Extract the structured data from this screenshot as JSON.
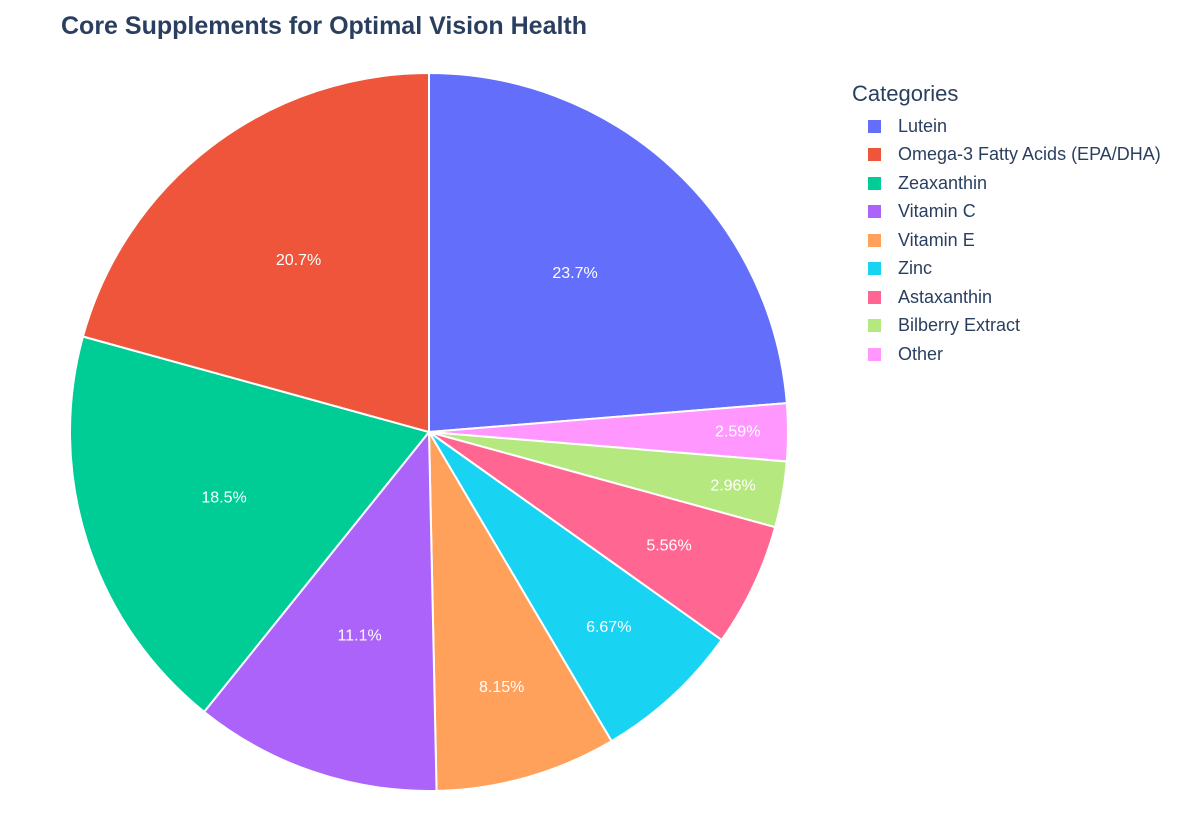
{
  "chart_data": {
    "type": "pie",
    "title": "Core Supplements for Optimal Vision Health",
    "legend_title": "Categories",
    "legend_placement": "right",
    "start_angle_deg": 90,
    "direction": "clockwise",
    "slices": [
      {
        "label": "Lutein",
        "percent": 23.7,
        "display": "23.7%",
        "color": "#636efa"
      },
      {
        "label": "Other",
        "percent": 2.59,
        "display": "2.59%",
        "color": "#ff97ff"
      },
      {
        "label": "Bilberry Extract",
        "percent": 2.96,
        "display": "2.96%",
        "color": "#b6e880"
      },
      {
        "label": "Astaxanthin",
        "percent": 5.56,
        "display": "5.56%",
        "color": "#ff6692"
      },
      {
        "label": "Zinc",
        "percent": 6.67,
        "display": "6.67%",
        "color": "#19d3f3"
      },
      {
        "label": "Vitamin E",
        "percent": 8.15,
        "display": "8.15%",
        "color": "#ffa15a"
      },
      {
        "label": "Vitamin C",
        "percent": 11.1,
        "display": "11.1%",
        "color": "#ab63fa"
      },
      {
        "label": "Zeaxanthin",
        "percent": 18.5,
        "display": "18.5%",
        "color": "#00cc96"
      },
      {
        "label": "Omega-3 Fatty Acids (EPA/DHA)",
        "percent": 20.7,
        "display": "20.7%",
        "color": "#ef553b"
      }
    ],
    "legend_order": [
      "Lutein",
      "Omega-3 Fatty Acids (EPA/DHA)",
      "Zeaxanthin",
      "Vitamin C",
      "Vitamin E",
      "Zinc",
      "Astaxanthin",
      "Bilberry Extract",
      "Other"
    ]
  }
}
